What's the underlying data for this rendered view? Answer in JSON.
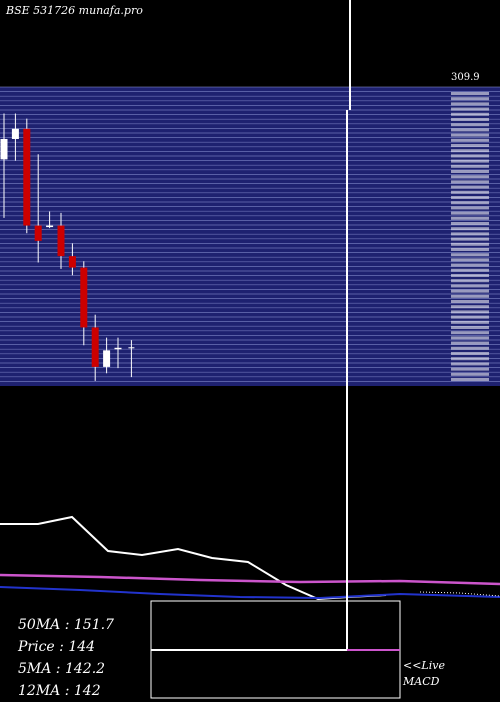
{
  "header": {
    "title": "BSE 531726  munafa.pro"
  },
  "price_axis": {
    "top_label": "309.9"
  },
  "stats": {
    "ma50": "50MA : 151.7",
    "price": "Price   : 144",
    "ma5": "5MA : 142.2",
    "ma12": "12MA : 142"
  },
  "footer": {
    "live": "<<Live",
    "macd": "MACD"
  },
  "colors": {
    "background": "#000000",
    "grid_band": "#1e2170",
    "grid_line": "#8890d0",
    "candle_up": "#ffffff",
    "candle_down": "#cc0000",
    "ma_white": "#ffffff",
    "ma_magenta": "#cc55cc",
    "ma_blue": "#2233cc"
  },
  "chart_data": {
    "type": "candlestick",
    "title": "BSE 531726  munafa.pro",
    "candles": [
      {
        "open": 246,
        "high": 282,
        "low": 200,
        "close": 262
      },
      {
        "open": 262,
        "high": 282,
        "low": 245,
        "close": 270
      },
      {
        "open": 270,
        "high": 278,
        "low": 188,
        "close": 194
      },
      {
        "open": 194,
        "high": 250,
        "low": 165,
        "close": 182
      },
      {
        "open": 194,
        "high": 205,
        "low": 192,
        "close": 194
      },
      {
        "open": 194,
        "high": 204,
        "low": 160,
        "close": 170
      },
      {
        "open": 170,
        "high": 180,
        "low": 155,
        "close": 161
      },
      {
        "open": 161,
        "high": 166,
        "low": 100,
        "close": 114
      },
      {
        "open": 114,
        "high": 124,
        "low": 72,
        "close": 83
      },
      {
        "open": 83,
        "high": 106,
        "low": 78,
        "close": 96
      },
      {
        "open": 98,
        "high": 106,
        "low": 82,
        "close": 98
      }
    ],
    "ylim": [
      68,
      309.9
    ],
    "moving_averages": [
      {
        "name": "50MA",
        "value": 151.7
      },
      {
        "name": "5MA",
        "value": 142.2
      },
      {
        "name": "12MA",
        "value": 142
      }
    ],
    "price": 144
  }
}
